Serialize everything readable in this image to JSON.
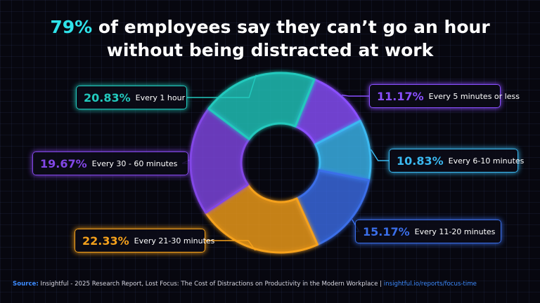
{
  "title": {
    "highlight": "79%",
    "line1_rest": " of employees say they can’t go an hour",
    "line2": "without being distracted at work"
  },
  "chart_data": {
    "type": "pie",
    "variant": "donut",
    "slices": [
      {
        "label": "Every 5 minutes or less",
        "value": 11.17,
        "display": "11.17%",
        "color": "#8a4fff"
      },
      {
        "label": "Every 6-10 minutes",
        "value": 10.83,
        "display": "10.83%",
        "color": "#3ab8f0"
      },
      {
        "label": "Every 11-20 minutes",
        "value": 15.17,
        "display": "15.17%",
        "color": "#3a6ee8"
      },
      {
        "label": "Every 21-30 minutes",
        "value": 22.33,
        "display": "22.33%",
        "color": "#f5a11c"
      },
      {
        "label": "Every 30 - 60 minutes",
        "value": 19.67,
        "display": "19.67%",
        "color": "#8247e6"
      },
      {
        "label": "Every 1 hour",
        "value": 20.83,
        "display": "20.83%",
        "color": "#22c9bd"
      }
    ]
  },
  "footer": {
    "source_label": "Source:",
    "source_text": "Insightful - 2025 Research Report, Lost Focus: The Cost of Distractions on Productivity in the Modern Workplace",
    "separator": "|",
    "link": "insightful.io/reports/focus-time"
  }
}
